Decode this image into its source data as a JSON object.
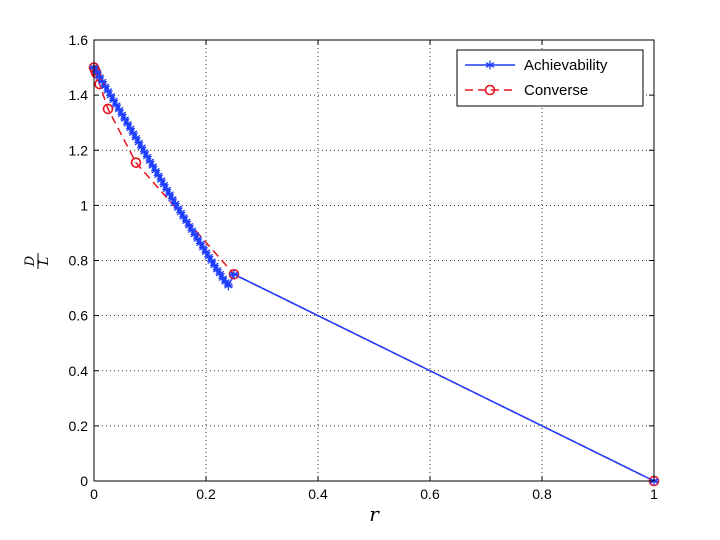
{
  "chart_data": {
    "type": "line",
    "xlabel": "r",
    "ylabel": {
      "numerator": "D",
      "denominator": "L"
    },
    "xlim": [
      0,
      1
    ],
    "ylim": [
      0,
      1.6
    ],
    "xticks": [
      "0",
      "0.2",
      "0.4",
      "0.6",
      "0.8",
      "1"
    ],
    "yticks": [
      "0",
      "0.2",
      "0.4",
      "0.6",
      "0.8",
      "1",
      "1.2",
      "1.4",
      "1.6"
    ],
    "grid": true,
    "legend_position": "top-right",
    "series": [
      {
        "name": "Achievability",
        "color": "#1f3fff",
        "line_style": "solid",
        "marker": "asterisk",
        "points": [
          [
            0,
            1.5
          ],
          [
            0.005,
            1.483
          ],
          [
            0.01,
            1.466
          ],
          [
            0.015,
            1.449
          ],
          [
            0.02,
            1.432
          ],
          [
            0.025,
            1.415
          ],
          [
            0.03,
            1.398
          ],
          [
            0.035,
            1.381
          ],
          [
            0.04,
            1.364
          ],
          [
            0.045,
            1.347
          ],
          [
            0.05,
            1.33
          ],
          [
            0.055,
            1.313
          ],
          [
            0.06,
            1.296
          ],
          [
            0.065,
            1.279
          ],
          [
            0.07,
            1.262
          ],
          [
            0.075,
            1.245
          ],
          [
            0.08,
            1.228
          ],
          [
            0.085,
            1.211
          ],
          [
            0.09,
            1.194
          ],
          [
            0.095,
            1.177
          ],
          [
            0.1,
            1.16
          ],
          [
            0.105,
            1.143
          ],
          [
            0.11,
            1.126
          ],
          [
            0.115,
            1.109
          ],
          [
            0.12,
            1.092
          ],
          [
            0.125,
            1.075
          ],
          [
            0.13,
            1.058
          ],
          [
            0.135,
            1.041
          ],
          [
            0.14,
            1.024
          ],
          [
            0.145,
            1.007
          ],
          [
            0.15,
            0.99
          ],
          [
            0.155,
            0.974
          ],
          [
            0.16,
            0.958
          ],
          [
            0.165,
            0.942
          ],
          [
            0.17,
            0.926
          ],
          [
            0.175,
            0.91
          ],
          [
            0.18,
            0.894
          ],
          [
            0.185,
            0.878
          ],
          [
            0.19,
            0.862
          ],
          [
            0.195,
            0.846
          ],
          [
            0.2,
            0.83
          ],
          [
            0.205,
            0.814
          ],
          [
            0.21,
            0.798
          ],
          [
            0.215,
            0.782
          ],
          [
            0.22,
            0.766
          ],
          [
            0.225,
            0.752
          ],
          [
            0.23,
            0.736
          ],
          [
            0.235,
            0.722
          ],
          [
            0.24,
            0.708
          ],
          [
            0.25,
            0.75
          ],
          [
            1,
            0
          ]
        ]
      },
      {
        "name": "Converse",
        "color": "#e8141e",
        "line_style": "dashed",
        "marker": "circle",
        "points": [
          [
            0,
            1.5
          ],
          [
            0.002,
            1.49
          ],
          [
            0.004,
            1.48
          ],
          [
            0.01,
            1.44
          ],
          [
            0.025,
            1.35
          ],
          [
            0.075,
            1.155
          ],
          [
            0.25,
            0.75
          ],
          [
            1,
            0
          ]
        ]
      }
    ]
  }
}
